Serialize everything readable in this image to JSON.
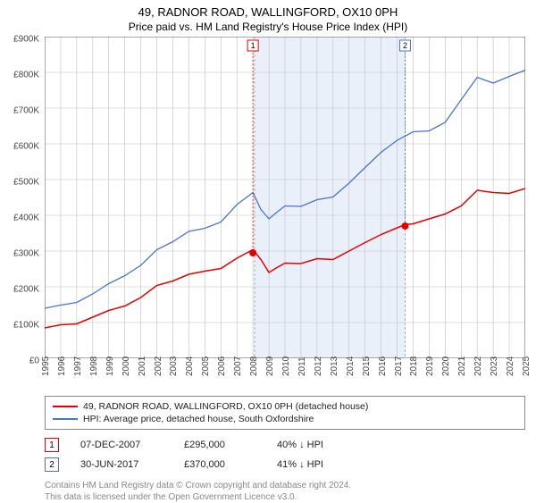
{
  "title": "49, RADNOR ROAD, WALLINGFORD, OX10 0PH",
  "subtitle": "Price paid vs. HM Land Registry's House Price Index (HPI)",
  "chart": {
    "type": "line",
    "background_color": "#ffffff",
    "grid_color": "#bfbfbf",
    "shaded_region_color": "#eaf0fa",
    "shaded_region": {
      "x_start": 2008.1,
      "x_end": 2017.5
    },
    "ylim": [
      0,
      900000
    ],
    "ytick_step": 100000,
    "ytick_labels": [
      "£0",
      "£100K",
      "£200K",
      "£300K",
      "£400K",
      "£500K",
      "£600K",
      "£700K",
      "£800K",
      "£900K"
    ],
    "xlim": [
      1995,
      2025
    ],
    "xtick_step": 1,
    "xtick_labels": [
      "1995",
      "1996",
      "1997",
      "1998",
      "1999",
      "2000",
      "2001",
      "2002",
      "2003",
      "2004",
      "2005",
      "2006",
      "2007",
      "2008",
      "2009",
      "2010",
      "2011",
      "2012",
      "2013",
      "2014",
      "2015",
      "2016",
      "2017",
      "2018",
      "2019",
      "2020",
      "2021",
      "2022",
      "2023",
      "2024",
      "2025"
    ],
    "series": [
      {
        "name": "49, RADNOR ROAD, WALLINGFORD, OX10 0PH (detached house)",
        "color": "#e60000",
        "line_width": 1.5,
        "data": [
          [
            1995,
            85000
          ],
          [
            1996,
            90000
          ],
          [
            1997,
            100000
          ],
          [
            1998,
            115000
          ],
          [
            1999,
            130000
          ],
          [
            2000,
            150000
          ],
          [
            2001,
            170000
          ],
          [
            2002,
            200000
          ],
          [
            2003,
            220000
          ],
          [
            2004,
            235000
          ],
          [
            2005,
            240000
          ],
          [
            2006,
            255000
          ],
          [
            2007,
            280000
          ],
          [
            2008,
            300000
          ],
          [
            2008.5,
            280000
          ],
          [
            2009,
            240000
          ],
          [
            2009.5,
            250000
          ],
          [
            2010,
            270000
          ],
          [
            2011,
            265000
          ],
          [
            2012,
            275000
          ],
          [
            2013,
            280000
          ],
          [
            2014,
            300000
          ],
          [
            2015,
            320000
          ],
          [
            2016,
            350000
          ],
          [
            2017,
            365000
          ],
          [
            2017.5,
            370000
          ],
          [
            2018,
            380000
          ],
          [
            2019,
            390000
          ],
          [
            2020,
            400000
          ],
          [
            2021,
            430000
          ],
          [
            2022,
            470000
          ],
          [
            2023,
            460000
          ],
          [
            2024,
            465000
          ],
          [
            2025,
            475000
          ]
        ]
      },
      {
        "name": "HPI: Average price, detached house, South Oxfordshire",
        "color": "#4a74c9",
        "line_width": 1.3,
        "data": [
          [
            1995,
            140000
          ],
          [
            1996,
            145000
          ],
          [
            1997,
            160000
          ],
          [
            1998,
            180000
          ],
          [
            1999,
            205000
          ],
          [
            2000,
            235000
          ],
          [
            2001,
            260000
          ],
          [
            2002,
            300000
          ],
          [
            2003,
            330000
          ],
          [
            2004,
            355000
          ],
          [
            2005,
            360000
          ],
          [
            2006,
            385000
          ],
          [
            2007,
            430000
          ],
          [
            2008,
            460000
          ],
          [
            2008.5,
            420000
          ],
          [
            2009,
            390000
          ],
          [
            2009.5,
            405000
          ],
          [
            2010,
            430000
          ],
          [
            2011,
            425000
          ],
          [
            2012,
            440000
          ],
          [
            2013,
            455000
          ],
          [
            2014,
            490000
          ],
          [
            2015,
            530000
          ],
          [
            2016,
            580000
          ],
          [
            2017,
            610000
          ],
          [
            2018,
            630000
          ],
          [
            2019,
            640000
          ],
          [
            2020,
            660000
          ],
          [
            2021,
            720000
          ],
          [
            2022,
            790000
          ],
          [
            2023,
            770000
          ],
          [
            2024,
            785000
          ],
          [
            2025,
            810000
          ]
        ]
      }
    ],
    "markers": [
      {
        "label": "1",
        "x": 2008.0,
        "y": 295000,
        "color": "#e60000",
        "border": "#e60000"
      },
      {
        "label": "2",
        "x": 2017.5,
        "y": 370000,
        "color": "#e60000",
        "border": "#4a74c9"
      }
    ]
  },
  "legend": {
    "items": [
      {
        "color": "#e60000",
        "label": "49, RADNOR ROAD, WALLINGFORD, OX10 0PH (detached house)"
      },
      {
        "color": "#4a74c9",
        "label": "HPI: Average price, detached house, South Oxfordshire"
      }
    ]
  },
  "data_rows": [
    {
      "marker": "1",
      "marker_border": "#e60000",
      "date": "07-DEC-2007",
      "price": "£295,000",
      "diff": "40% ↓ HPI"
    },
    {
      "marker": "2",
      "marker_border": "#4a74c9",
      "date": "30-JUN-2017",
      "price": "£370,000",
      "diff": "41% ↓ HPI"
    }
  ],
  "license_line1": "Contains HM Land Registry data © Crown copyright and database right 2024.",
  "license_line2": "This data is licensed under the Open Government Licence v3.0."
}
